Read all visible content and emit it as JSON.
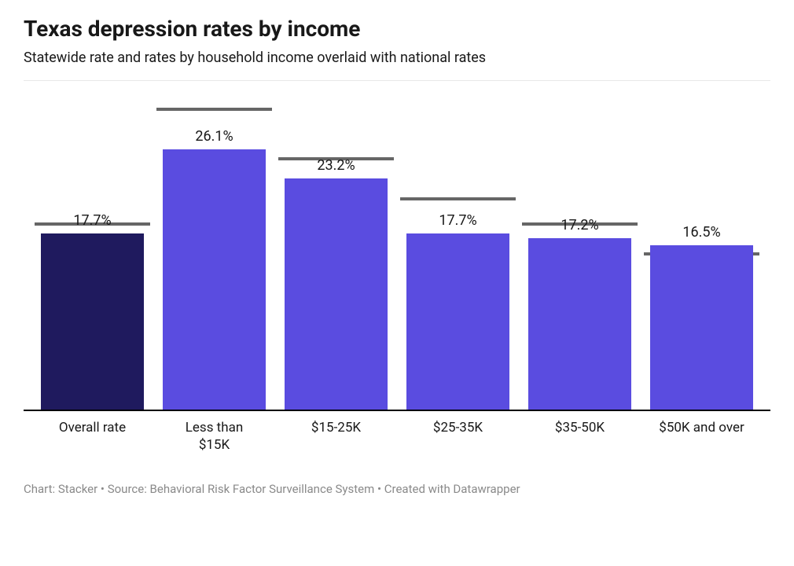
{
  "title": "Texas depression rates by income",
  "subtitle": "Statewide rate and rates by household income overlaid with national rates",
  "footer": "Chart: Stacker • Source: Behavioral Risk Factor Surveillance System • Created with Datawrapper",
  "chart": {
    "type": "bar",
    "ymax": 33,
    "gridlines": [
      33
    ],
    "background_color": "#ffffff",
    "grid_color": "#e8e8e8",
    "axis_color": "#000000",
    "overlay_color": "#666666",
    "title_fontsize": 28,
    "subtitle_fontsize": 18,
    "label_fontsize": 18,
    "xlabel_fontsize": 17,
    "footer_fontsize": 15,
    "bar_width_pct": 84,
    "data": [
      {
        "category": "Overall rate",
        "value": 17.7,
        "value_label": "17.7%",
        "bar_color": "#1f1a5e",
        "overlay_value": 18.5
      },
      {
        "category": "Less than $15K",
        "value": 26.1,
        "value_label": "26.1%",
        "bar_color": "#5a4ce0",
        "overlay_value": 30.0
      },
      {
        "category": "$15-25K",
        "value": 23.2,
        "value_label": "23.2%",
        "bar_color": "#5a4ce0",
        "overlay_value": 25.0
      },
      {
        "category": "$25-35K",
        "value": 17.7,
        "value_label": "17.7%",
        "bar_color": "#5a4ce0",
        "overlay_value": 21.0
      },
      {
        "category": "$35-50K",
        "value": 17.2,
        "value_label": "17.2%",
        "bar_color": "#5a4ce0",
        "overlay_value": 18.5
      },
      {
        "category": "$50K and over",
        "value": 16.5,
        "value_label": "16.5%",
        "bar_color": "#5a4ce0",
        "overlay_value": 15.5
      }
    ]
  }
}
